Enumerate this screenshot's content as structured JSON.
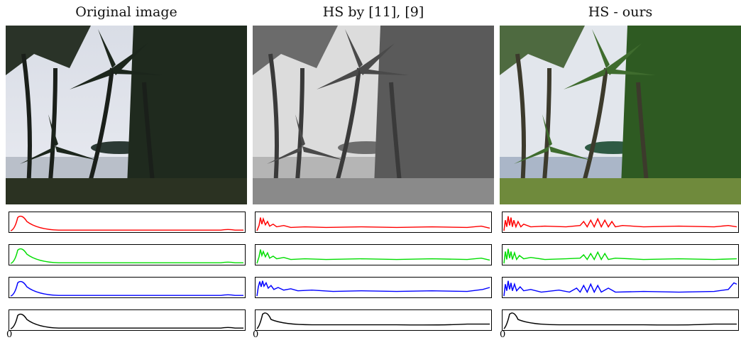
{
  "columns": [
    {
      "title": "Original image",
      "photo": "original"
    },
    {
      "title": "HS by  [11], [9]",
      "photo": "hs-reference"
    },
    {
      "title": "HS - ours",
      "photo": "hs-ours"
    }
  ],
  "histogram_channels": [
    "red",
    "green",
    "blue",
    "gray"
  ],
  "colors": {
    "red": "#ff0000",
    "green": "#00dd00",
    "blue": "#0000ff",
    "gray": "#000000"
  },
  "axis_origin_label": "0"
}
